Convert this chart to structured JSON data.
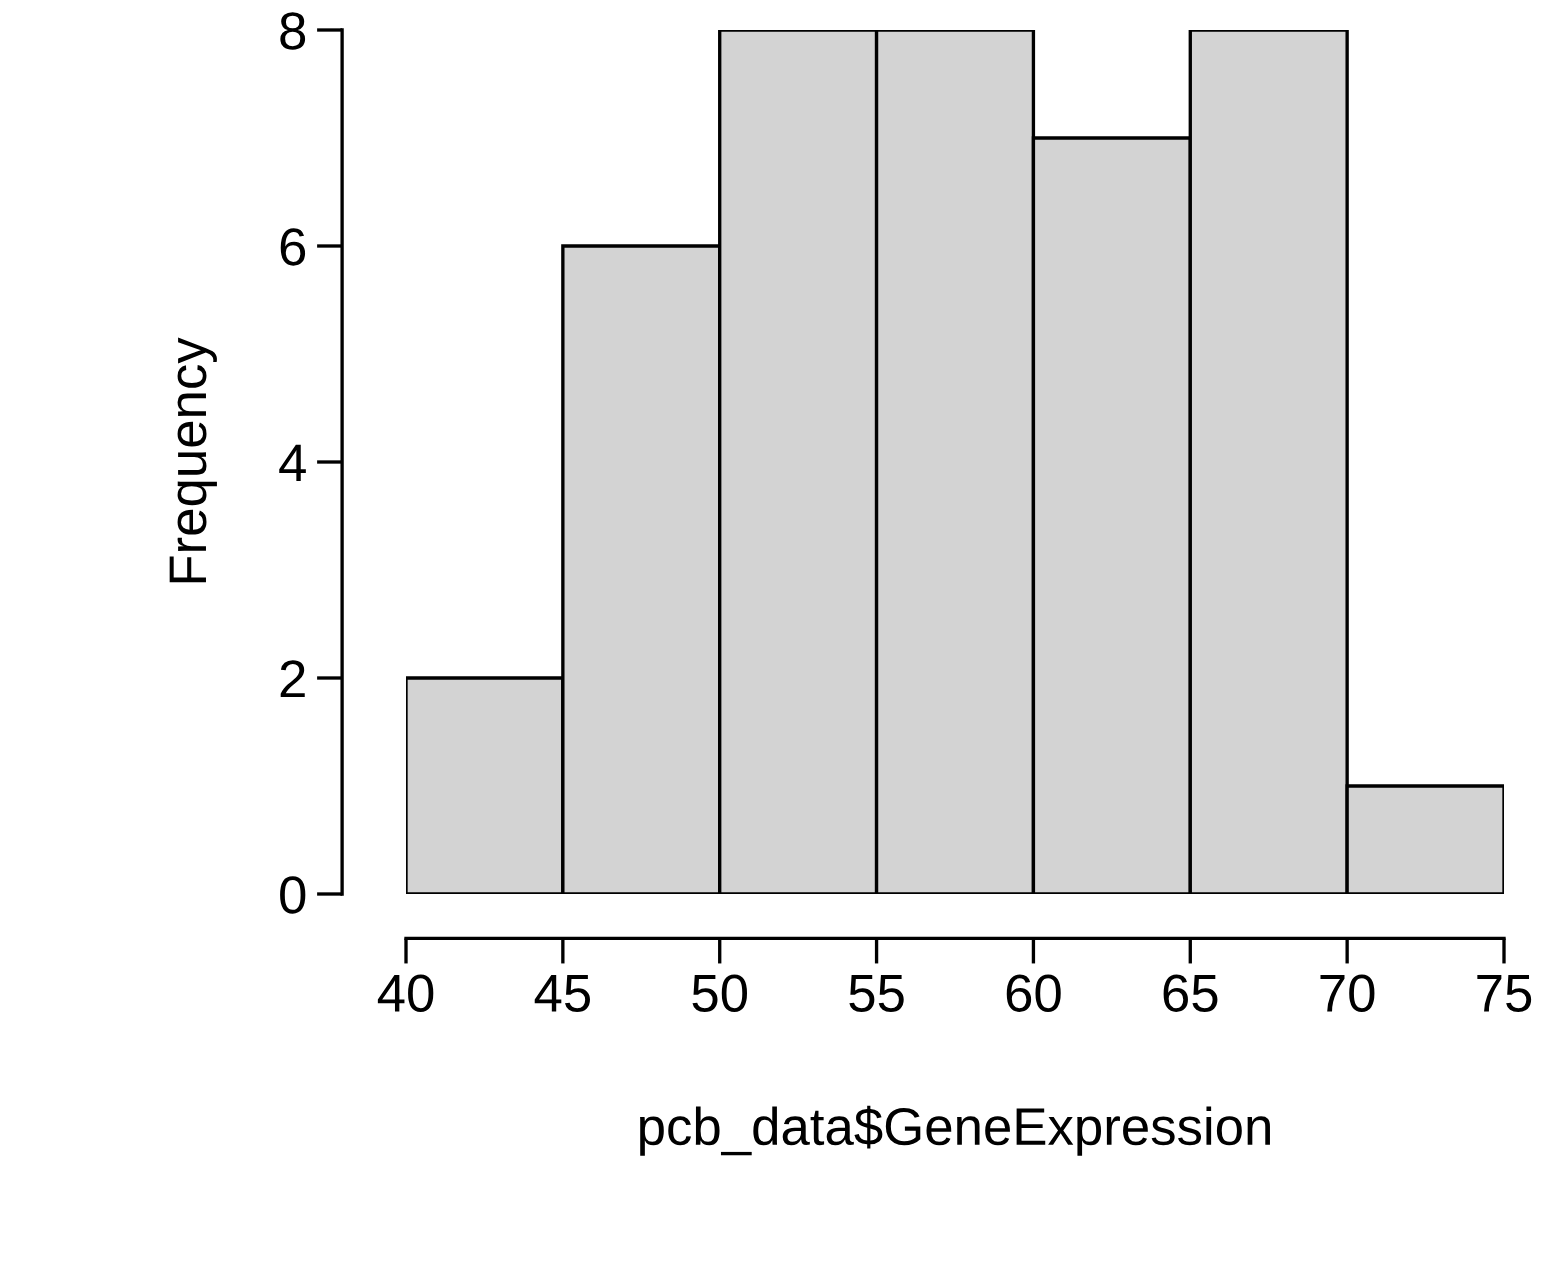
{
  "chart_data": {
    "type": "histogram",
    "xlabel": "pcb_data$GeneExpression",
    "ylabel": "Frequency",
    "bins": [
      40,
      45,
      50,
      55,
      60,
      65,
      70,
      75
    ],
    "values": [
      2,
      6,
      8,
      8,
      7,
      8,
      1
    ],
    "color": "#d3d3d3",
    "xlim": [
      40,
      75
    ],
    "ylim": [
      0,
      8
    ],
    "xticks": [
      40,
      45,
      50,
      55,
      60,
      65,
      70,
      75
    ],
    "yticks": [
      0,
      2,
      4,
      6,
      8
    ],
    "grid": false
  }
}
